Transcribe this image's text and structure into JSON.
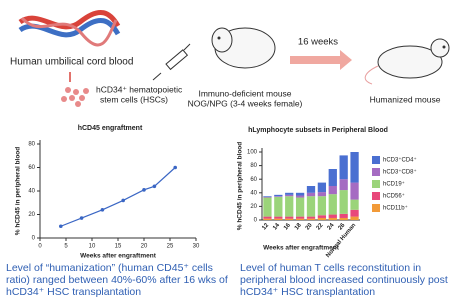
{
  "diagram": {
    "cord_label": "Human umbilical cord blood",
    "cells_label": [
      "hCD34⁺ hematopoietic",
      "stem cells (HSCs)"
    ],
    "mouse_label": [
      "Immuno-deficient mouse",
      "NOG/NPG (3-4 weeks female)"
    ],
    "arrow_label": "16 weeks",
    "humanized_label": "Humanized mouse"
  },
  "chart_data": [
    {
      "type": "line",
      "title": "hCD45 engraftment",
      "x_label": "Weeks after engraftment",
      "y_label": "% hCD45 in peripheral blood",
      "x": [
        4,
        8,
        12,
        16,
        20,
        22,
        26
      ],
      "values": [
        10,
        17,
        24,
        32,
        41,
        44,
        60
      ],
      "color": "#3a66c4",
      "xlim": [
        0,
        30
      ],
      "xticks": [
        0,
        5,
        10,
        15,
        20,
        25,
        30
      ],
      "ylim": [
        0,
        80
      ],
      "yticks": [
        0,
        20,
        40,
        60,
        80
      ]
    },
    {
      "type": "bar",
      "stacked": true,
      "title": "hLymphocyte subsets in Peripheral Blood",
      "x_label": "Weeks after engraftment",
      "y_label": "% hCD45 in peripheral blood",
      "categories": [
        "12",
        "14",
        "16",
        "18",
        "20",
        "22",
        "24",
        "26",
        "Normal Human"
      ],
      "series": [
        {
          "name": "hCD11b⁺",
          "color": "#f29a38",
          "values": [
            2,
            2,
            2,
            2,
            2,
            3,
            3,
            3,
            5
          ]
        },
        {
          "name": "hCD56⁺",
          "color": "#e8487a",
          "values": [
            3,
            3,
            3,
            3,
            3,
            4,
            5,
            6,
            10
          ]
        },
        {
          "name": "hCD19⁺",
          "color": "#9bd47a",
          "values": [
            28,
            29,
            30,
            28,
            30,
            28,
            30,
            35,
            15
          ]
        },
        {
          "name": "hCD3⁺CD8⁺",
          "color": "#a56bc2",
          "values": [
            1,
            1,
            2,
            3,
            5,
            6,
            12,
            16,
            25
          ]
        },
        {
          "name": "hCD3⁺CD4⁺",
          "color": "#4a6fd1",
          "values": [
            1,
            2,
            3,
            4,
            10,
            14,
            25,
            35,
            45
          ]
        }
      ],
      "ylim": [
        0,
        100
      ],
      "yticks": [
        0,
        20,
        40,
        60,
        80,
        100
      ]
    }
  ],
  "captions": [
    [
      "Level of “humanization” (human CD45⁺ cells",
      "ratio) ranged between 40%-60% after 16 wks of",
      "hCD34⁺ HSC transplantation"
    ],
    [
      "Level of human T cells reconstitution in",
      "peripheral blood increased continuously post",
      "hCD34⁺ HSC transplantation"
    ]
  ]
}
